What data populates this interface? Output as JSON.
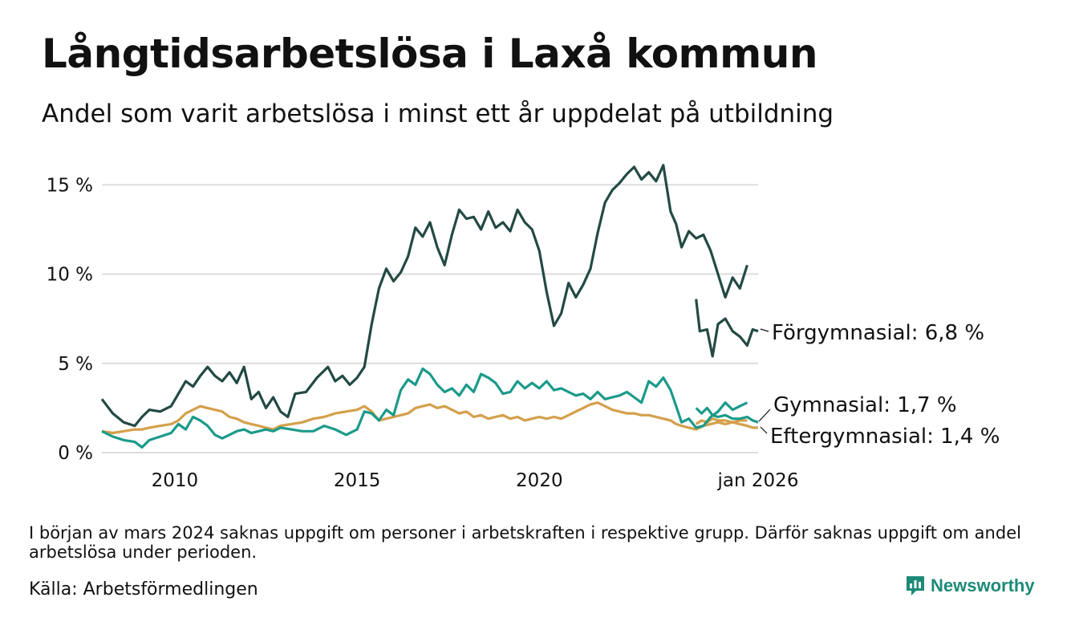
{
  "title": "Långtidsarbetslösa i Laxå kommun",
  "subtitle": "Andel som varit arbetslösa i minst ett år uppdelat på utbildning",
  "note": "I början av mars 2024 saknas uppgift om personer i arbetskraften i respektive grupp. Därför saknas uppgift om andel arbetslösa under perioden.",
  "source": "Källa: Arbetsförmedlingen",
  "brand": "Newsworthy",
  "chart_data": {
    "type": "line",
    "title": "Långtidsarbetslösa i Laxå kommun",
    "ylabel": "",
    "xlabel": "",
    "xlim": [
      2008.0,
      2026.0
    ],
    "ylim": [
      0,
      16
    ],
    "grid": true,
    "y_ticks": [
      {
        "value": 0,
        "label": "0 %"
      },
      {
        "value": 5,
        "label": "5 %"
      },
      {
        "value": 10,
        "label": "10 %"
      },
      {
        "value": 15,
        "label": "15 %"
      }
    ],
    "x_ticks": [
      {
        "value": 2010,
        "label": "2010"
      },
      {
        "value": 2015,
        "label": "2015"
      },
      {
        "value": 2020,
        "label": "2020"
      },
      {
        "value": 2026,
        "label": "jan 2026"
      }
    ],
    "gap": [
      2023.95,
      2024.25
    ],
    "series": [
      {
        "name": "Förgymnasial",
        "label": "Förgymnasial: 6,8 %",
        "color": "#234a45",
        "points": [
          [
            2008.0,
            3.0
          ],
          [
            2008.3,
            2.2
          ],
          [
            2008.6,
            1.7
          ],
          [
            2008.9,
            1.5
          ],
          [
            2009.1,
            2.0
          ],
          [
            2009.3,
            2.4
          ],
          [
            2009.6,
            2.3
          ],
          [
            2009.9,
            2.6
          ],
          [
            2010.1,
            3.3
          ],
          [
            2010.3,
            4.0
          ],
          [
            2010.5,
            3.7
          ],
          [
            2010.7,
            4.3
          ],
          [
            2010.9,
            4.8
          ],
          [
            2011.1,
            4.3
          ],
          [
            2011.3,
            4.0
          ],
          [
            2011.5,
            4.5
          ],
          [
            2011.7,
            3.9
          ],
          [
            2011.9,
            4.8
          ],
          [
            2012.1,
            3.0
          ],
          [
            2012.3,
            3.4
          ],
          [
            2012.5,
            2.5
          ],
          [
            2012.7,
            3.1
          ],
          [
            2012.9,
            2.3
          ],
          [
            2013.1,
            2.0
          ],
          [
            2013.3,
            3.3
          ],
          [
            2013.6,
            3.4
          ],
          [
            2013.9,
            4.2
          ],
          [
            2014.2,
            4.8
          ],
          [
            2014.4,
            4.0
          ],
          [
            2014.6,
            4.3
          ],
          [
            2014.8,
            3.8
          ],
          [
            2015.0,
            4.2
          ],
          [
            2015.2,
            4.8
          ],
          [
            2015.4,
            7.2
          ],
          [
            2015.6,
            9.2
          ],
          [
            2015.8,
            10.3
          ],
          [
            2016.0,
            9.6
          ],
          [
            2016.2,
            10.1
          ],
          [
            2016.4,
            11.0
          ],
          [
            2016.6,
            12.6
          ],
          [
            2016.8,
            12.1
          ],
          [
            2017.0,
            12.9
          ],
          [
            2017.2,
            11.5
          ],
          [
            2017.4,
            10.5
          ],
          [
            2017.6,
            12.2
          ],
          [
            2017.8,
            13.6
          ],
          [
            2018.0,
            13.1
          ],
          [
            2018.2,
            13.2
          ],
          [
            2018.4,
            12.5
          ],
          [
            2018.6,
            13.5
          ],
          [
            2018.8,
            12.6
          ],
          [
            2019.0,
            12.9
          ],
          [
            2019.2,
            12.4
          ],
          [
            2019.4,
            13.6
          ],
          [
            2019.6,
            12.9
          ],
          [
            2019.8,
            12.5
          ],
          [
            2020.0,
            11.3
          ],
          [
            2020.2,
            9.0
          ],
          [
            2020.4,
            7.1
          ],
          [
            2020.6,
            7.8
          ],
          [
            2020.8,
            9.5
          ],
          [
            2021.0,
            8.7
          ],
          [
            2021.2,
            9.4
          ],
          [
            2021.4,
            10.3
          ],
          [
            2021.6,
            12.3
          ],
          [
            2021.8,
            14.0
          ],
          [
            2022.0,
            14.7
          ],
          [
            2022.2,
            15.1
          ],
          [
            2022.4,
            15.6
          ],
          [
            2022.6,
            16.0
          ],
          [
            2022.8,
            15.3
          ],
          [
            2023.0,
            15.7
          ],
          [
            2023.2,
            15.2
          ],
          [
            2023.4,
            16.1
          ],
          [
            2023.6,
            13.5
          ],
          [
            2023.75,
            12.8
          ],
          [
            2023.9,
            11.5
          ],
          [
            2024.1,
            12.4
          ],
          [
            2024.3,
            12.0
          ],
          [
            2024.5,
            12.2
          ],
          [
            2024.7,
            11.3
          ],
          [
            2024.9,
            10.0
          ],
          [
            2025.1,
            8.7
          ],
          [
            2025.3,
            9.8
          ],
          [
            2025.5,
            9.2
          ],
          [
            2025.7,
            10.5
          ]
        ],
        "points_after_gap": [
          [
            2024.3,
            8.6
          ],
          [
            2024.4,
            6.8
          ],
          [
            2024.6,
            6.9
          ],
          [
            2024.75,
            5.4
          ],
          [
            2024.9,
            7.2
          ],
          [
            2025.1,
            7.5
          ],
          [
            2025.3,
            6.8
          ],
          [
            2025.5,
            6.5
          ],
          [
            2025.7,
            6.0
          ],
          [
            2025.85,
            6.9
          ],
          [
            2026.0,
            6.8
          ]
        ]
      },
      {
        "name": "Gymnasial",
        "label": "Gymnasial: 1,7 %",
        "color": "#1b9a8a",
        "points": [
          [
            2008.0,
            1.2
          ],
          [
            2008.3,
            0.9
          ],
          [
            2008.6,
            0.7
          ],
          [
            2008.9,
            0.6
          ],
          [
            2009.1,
            0.3
          ],
          [
            2009.3,
            0.7
          ],
          [
            2009.6,
            0.9
          ],
          [
            2009.9,
            1.1
          ],
          [
            2010.1,
            1.6
          ],
          [
            2010.3,
            1.3
          ],
          [
            2010.5,
            2.0
          ],
          [
            2010.7,
            1.8
          ],
          [
            2010.9,
            1.5
          ],
          [
            2011.1,
            1.0
          ],
          [
            2011.3,
            0.8
          ],
          [
            2011.5,
            1.0
          ],
          [
            2011.7,
            1.2
          ],
          [
            2011.9,
            1.3
          ],
          [
            2012.1,
            1.1
          ],
          [
            2012.3,
            1.2
          ],
          [
            2012.5,
            1.3
          ],
          [
            2012.7,
            1.2
          ],
          [
            2012.9,
            1.4
          ],
          [
            2013.2,
            1.3
          ],
          [
            2013.5,
            1.2
          ],
          [
            2013.8,
            1.2
          ],
          [
            2014.1,
            1.5
          ],
          [
            2014.4,
            1.3
          ],
          [
            2014.7,
            1.0
          ],
          [
            2015.0,
            1.3
          ],
          [
            2015.2,
            2.3
          ],
          [
            2015.4,
            2.2
          ],
          [
            2015.6,
            1.8
          ],
          [
            2015.8,
            2.4
          ],
          [
            2016.0,
            2.1
          ],
          [
            2016.2,
            3.5
          ],
          [
            2016.4,
            4.1
          ],
          [
            2016.6,
            3.8
          ],
          [
            2016.8,
            4.7
          ],
          [
            2017.0,
            4.4
          ],
          [
            2017.2,
            3.8
          ],
          [
            2017.4,
            3.4
          ],
          [
            2017.6,
            3.6
          ],
          [
            2017.8,
            3.2
          ],
          [
            2018.0,
            3.8
          ],
          [
            2018.2,
            3.4
          ],
          [
            2018.4,
            4.4
          ],
          [
            2018.6,
            4.2
          ],
          [
            2018.8,
            3.9
          ],
          [
            2019.0,
            3.3
          ],
          [
            2019.2,
            3.4
          ],
          [
            2019.4,
            4.0
          ],
          [
            2019.6,
            3.6
          ],
          [
            2019.8,
            3.9
          ],
          [
            2020.0,
            3.6
          ],
          [
            2020.2,
            4.0
          ],
          [
            2020.4,
            3.5
          ],
          [
            2020.6,
            3.6
          ],
          [
            2020.8,
            3.4
          ],
          [
            2021.0,
            3.2
          ],
          [
            2021.2,
            3.3
          ],
          [
            2021.4,
            3.0
          ],
          [
            2021.6,
            3.4
          ],
          [
            2021.8,
            3.0
          ],
          [
            2022.0,
            3.1
          ],
          [
            2022.2,
            3.2
          ],
          [
            2022.4,
            3.4
          ],
          [
            2022.6,
            3.1
          ],
          [
            2022.8,
            2.8
          ],
          [
            2023.0,
            4.0
          ],
          [
            2023.2,
            3.7
          ],
          [
            2023.4,
            4.2
          ],
          [
            2023.6,
            3.5
          ],
          [
            2023.75,
            2.6
          ],
          [
            2023.9,
            1.7
          ],
          [
            2024.1,
            1.9
          ],
          [
            2024.3,
            1.4
          ],
          [
            2024.5,
            1.5
          ],
          [
            2024.7,
            2.0
          ],
          [
            2024.9,
            2.3
          ],
          [
            2025.1,
            2.8
          ],
          [
            2025.3,
            2.4
          ],
          [
            2025.5,
            2.6
          ],
          [
            2025.7,
            2.8
          ]
        ],
        "points_after_gap": [
          [
            2024.3,
            2.5
          ],
          [
            2024.45,
            2.2
          ],
          [
            2024.6,
            2.5
          ],
          [
            2024.75,
            2.1
          ],
          [
            2024.9,
            2.0
          ],
          [
            2025.1,
            2.1
          ],
          [
            2025.3,
            1.9
          ],
          [
            2025.5,
            1.9
          ],
          [
            2025.7,
            2.0
          ],
          [
            2025.85,
            1.8
          ],
          [
            2026.0,
            1.7
          ]
        ]
      },
      {
        "name": "Eftergymnasial",
        "label": "Eftergymnasial: 1,4 %",
        "color": "#d4a04b",
        "points": [
          [
            2008.0,
            1.2
          ],
          [
            2008.3,
            1.1
          ],
          [
            2008.6,
            1.2
          ],
          [
            2008.9,
            1.3
          ],
          [
            2009.1,
            1.3
          ],
          [
            2009.3,
            1.4
          ],
          [
            2009.6,
            1.5
          ],
          [
            2009.9,
            1.6
          ],
          [
            2010.1,
            1.8
          ],
          [
            2010.3,
            2.2
          ],
          [
            2010.5,
            2.4
          ],
          [
            2010.7,
            2.6
          ],
          [
            2010.9,
            2.5
          ],
          [
            2011.1,
            2.4
          ],
          [
            2011.3,
            2.3
          ],
          [
            2011.5,
            2.0
          ],
          [
            2011.7,
            1.9
          ],
          [
            2011.9,
            1.7
          ],
          [
            2012.1,
            1.6
          ],
          [
            2012.3,
            1.5
          ],
          [
            2012.5,
            1.4
          ],
          [
            2012.7,
            1.3
          ],
          [
            2012.9,
            1.5
          ],
          [
            2013.2,
            1.6
          ],
          [
            2013.5,
            1.7
          ],
          [
            2013.8,
            1.9
          ],
          [
            2014.1,
            2.0
          ],
          [
            2014.4,
            2.2
          ],
          [
            2014.7,
            2.3
          ],
          [
            2015.0,
            2.4
          ],
          [
            2015.2,
            2.6
          ],
          [
            2015.4,
            2.3
          ],
          [
            2015.6,
            1.8
          ],
          [
            2015.8,
            1.9
          ],
          [
            2016.0,
            2.0
          ],
          [
            2016.2,
            2.1
          ],
          [
            2016.4,
            2.2
          ],
          [
            2016.6,
            2.5
          ],
          [
            2016.8,
            2.6
          ],
          [
            2017.0,
            2.7
          ],
          [
            2017.2,
            2.5
          ],
          [
            2017.4,
            2.6
          ],
          [
            2017.6,
            2.4
          ],
          [
            2017.8,
            2.2
          ],
          [
            2018.0,
            2.3
          ],
          [
            2018.2,
            2.0
          ],
          [
            2018.4,
            2.1
          ],
          [
            2018.6,
            1.9
          ],
          [
            2018.8,
            2.0
          ],
          [
            2019.0,
            2.1
          ],
          [
            2019.2,
            1.9
          ],
          [
            2019.4,
            2.0
          ],
          [
            2019.6,
            1.8
          ],
          [
            2019.8,
            1.9
          ],
          [
            2020.0,
            2.0
          ],
          [
            2020.2,
            1.9
          ],
          [
            2020.4,
            2.0
          ],
          [
            2020.6,
            1.9
          ],
          [
            2020.8,
            2.1
          ],
          [
            2021.0,
            2.3
          ],
          [
            2021.2,
            2.5
          ],
          [
            2021.4,
            2.7
          ],
          [
            2021.6,
            2.8
          ],
          [
            2021.8,
            2.6
          ],
          [
            2022.0,
            2.4
          ],
          [
            2022.2,
            2.3
          ],
          [
            2022.4,
            2.2
          ],
          [
            2022.6,
            2.2
          ],
          [
            2022.8,
            2.1
          ],
          [
            2023.0,
            2.1
          ],
          [
            2023.2,
            2.0
          ],
          [
            2023.4,
            1.9
          ],
          [
            2023.6,
            1.8
          ],
          [
            2023.75,
            1.6
          ],
          [
            2023.9,
            1.5
          ],
          [
            2024.1,
            1.4
          ],
          [
            2024.3,
            1.3
          ],
          [
            2024.5,
            1.5
          ],
          [
            2024.7,
            1.6
          ],
          [
            2024.9,
            1.7
          ],
          [
            2025.1,
            1.6
          ],
          [
            2025.3,
            1.7
          ],
          [
            2025.5,
            1.8
          ],
          [
            2025.7,
            1.8
          ]
        ],
        "points_after_gap": [
          [
            2024.3,
            1.6
          ],
          [
            2024.45,
            1.8
          ],
          [
            2024.6,
            1.7
          ],
          [
            2024.75,
            1.9
          ],
          [
            2024.9,
            1.8
          ],
          [
            2025.1,
            1.8
          ],
          [
            2025.3,
            1.7
          ],
          [
            2025.5,
            1.6
          ],
          [
            2025.7,
            1.5
          ],
          [
            2025.85,
            1.4
          ],
          [
            2026.0,
            1.4
          ]
        ]
      }
    ]
  }
}
